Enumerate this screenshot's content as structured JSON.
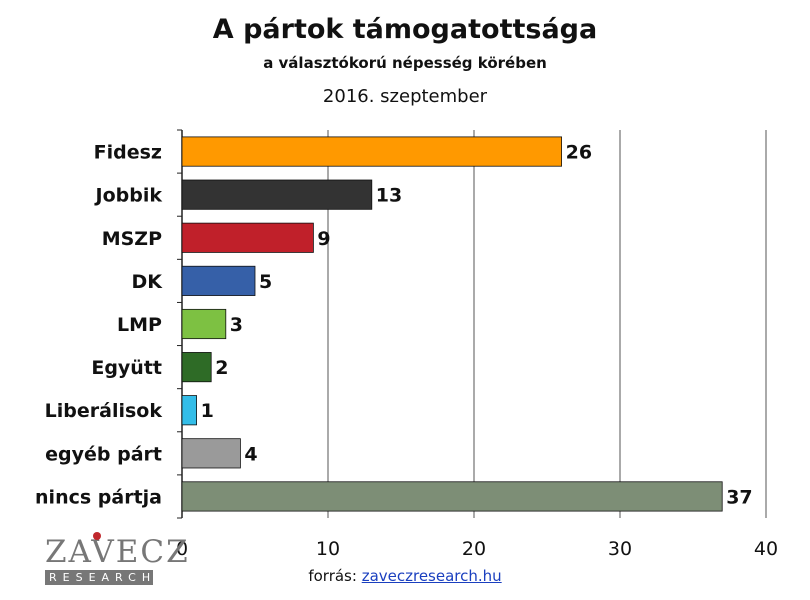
{
  "title": "A pártok támogatottsága",
  "subtitle": "a választókorú népesség körében",
  "date": "2016. szeptember",
  "footer": {
    "label": "forrás:",
    "link": "zaveczresearch.hu"
  },
  "logo": {
    "name": "ZAVECZ",
    "sub": "RESEARCH",
    "accent": "#c0282d"
  },
  "chart_data": {
    "type": "bar",
    "orientation": "horizontal",
    "categories": [
      "Fidesz",
      "Jobbik",
      "MSZP",
      "DK",
      "LMP",
      "Együtt",
      "Liberálisok",
      "egyéb párt",
      "nincs pártja"
    ],
    "values": [
      26,
      13,
      9,
      5,
      3,
      2,
      1,
      4,
      37
    ],
    "colors": [
      "#ff9900",
      "#333333",
      "#c0202a",
      "#3660a8",
      "#7dc142",
      "#2e6b26",
      "#33bde8",
      "#9a9a9a",
      "#7d8e76"
    ],
    "xlim": [
      0,
      40
    ],
    "xticks": [
      0,
      10,
      20,
      30,
      40
    ],
    "grid": true
  }
}
